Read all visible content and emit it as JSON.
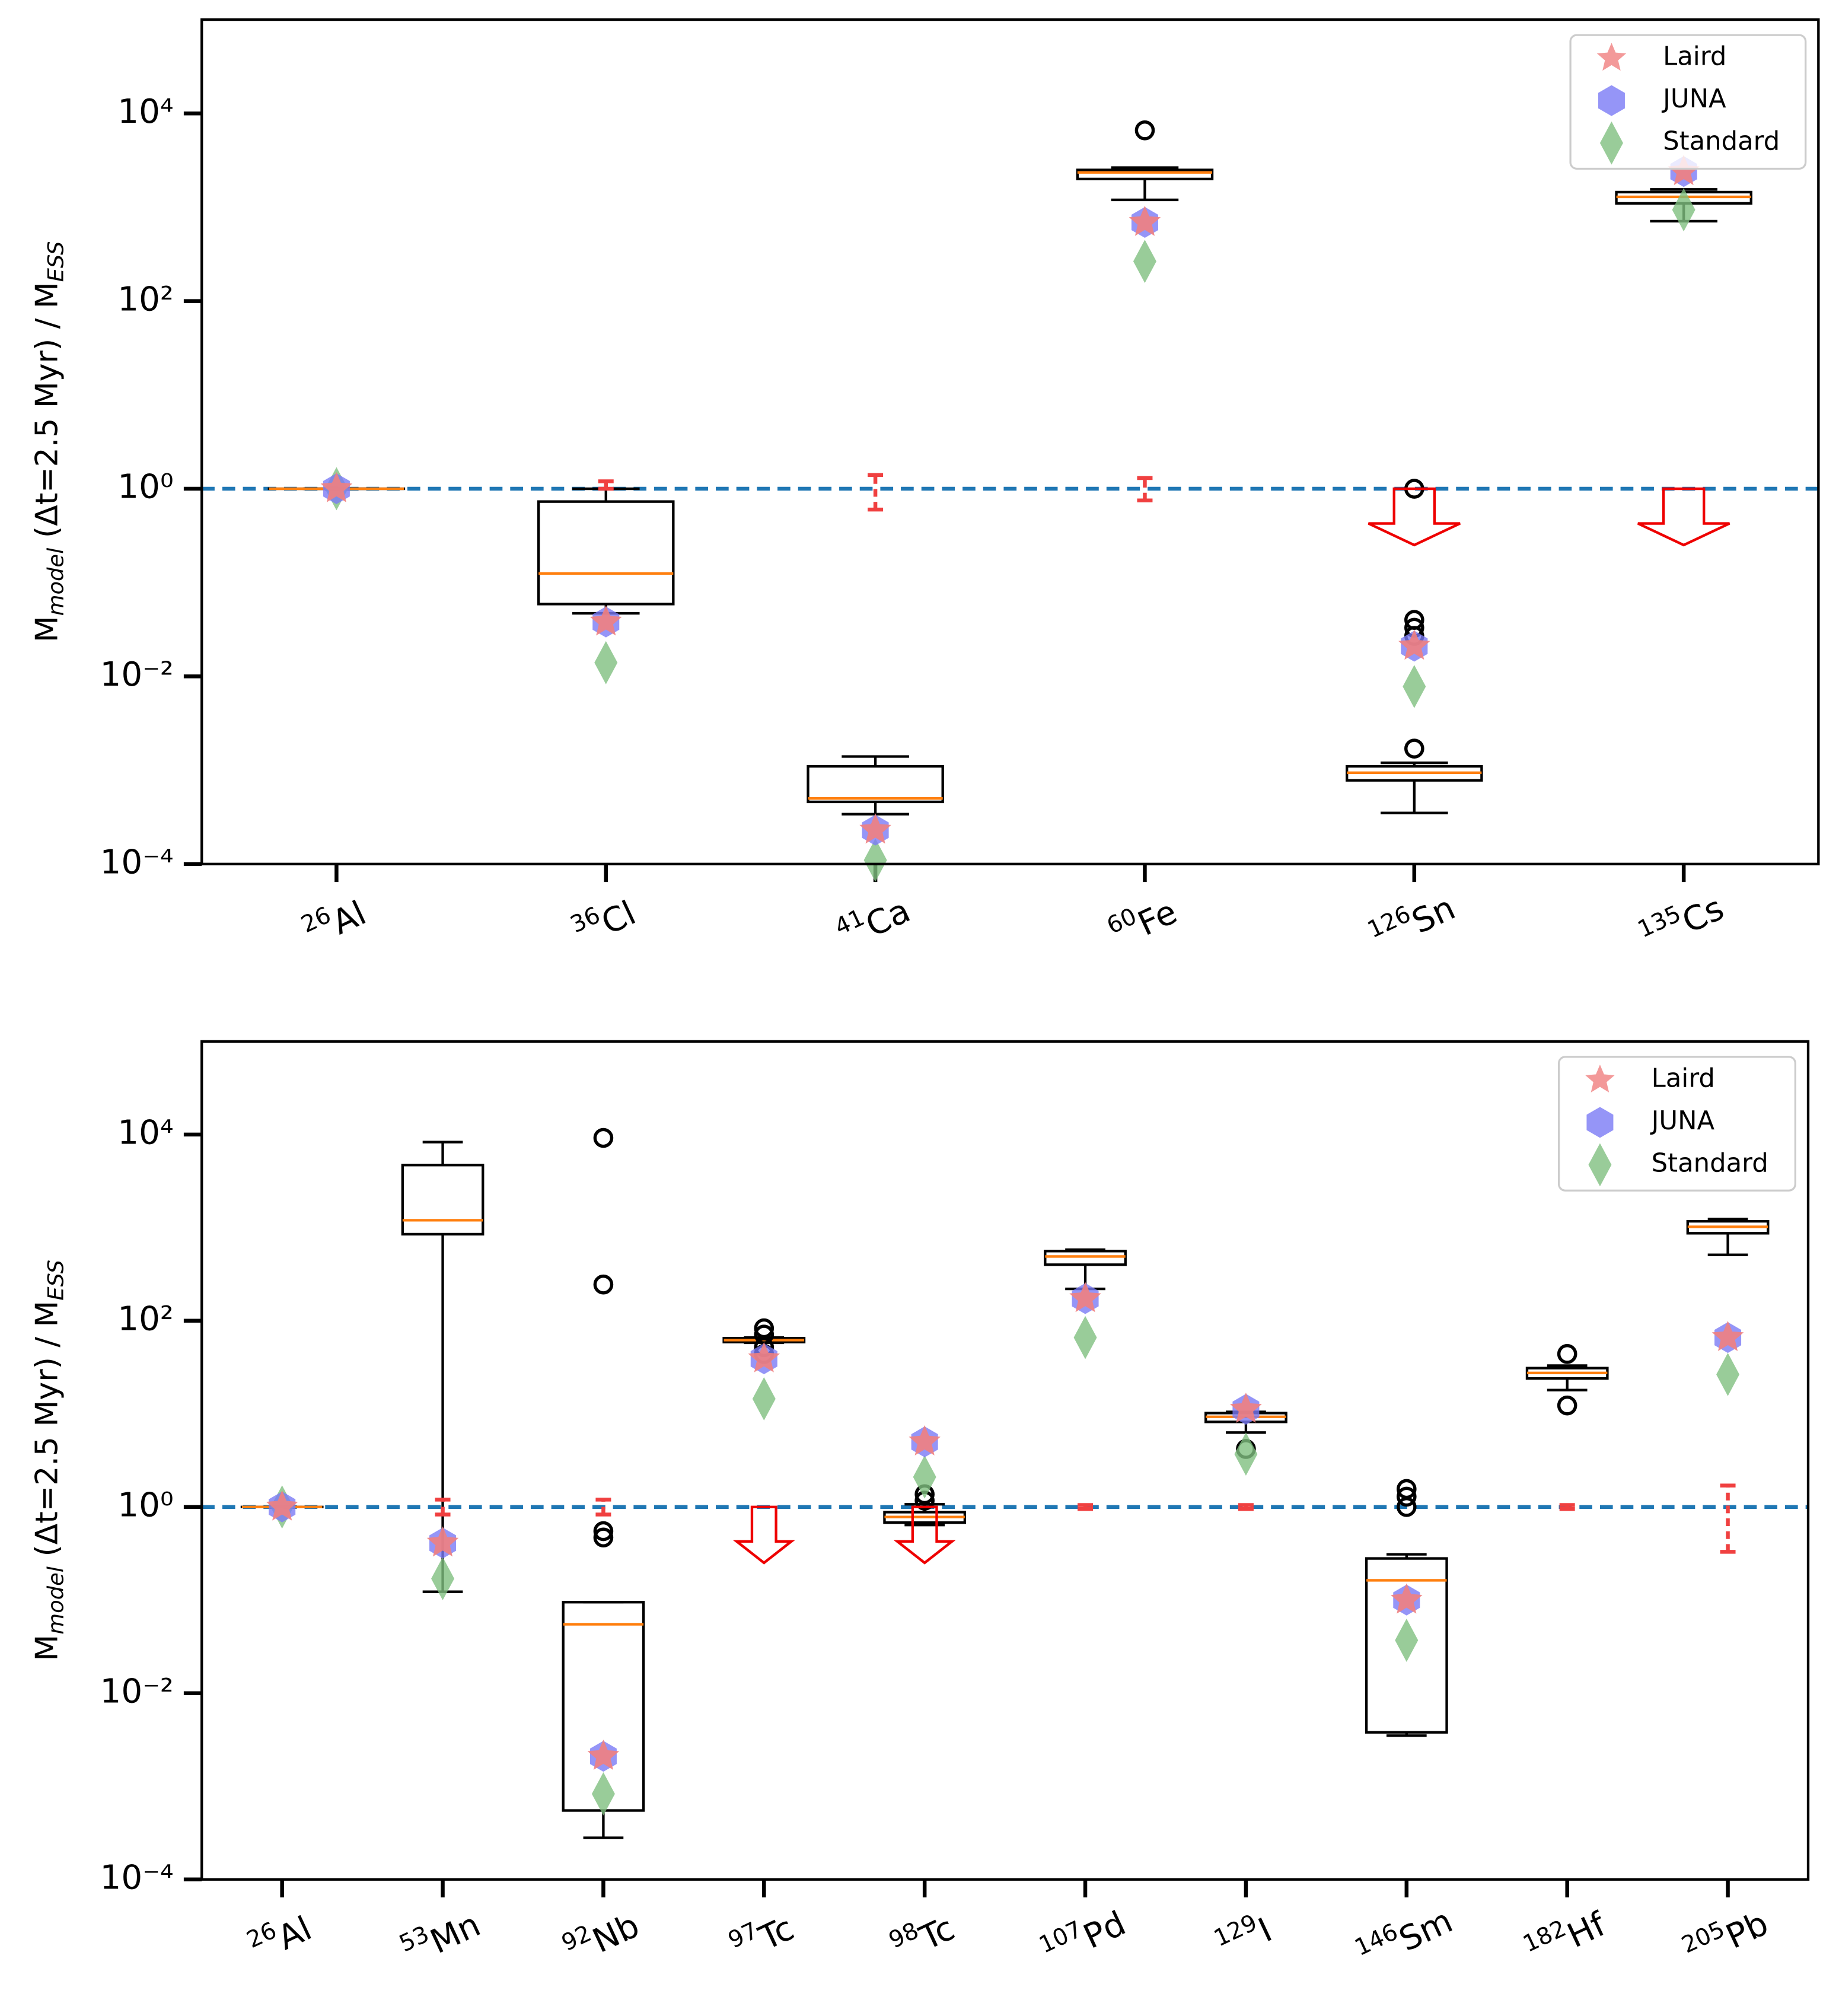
{
  "chart_data": [
    {
      "type": "box",
      "ylabel": {
        "base": "M",
        "sub": "model",
        "mid": " (Δt=2.5 Myr) / M",
        "sub2": "ESS"
      },
      "categories": [
        {
          "mass": "26",
          "element": "Al"
        },
        {
          "mass": "36",
          "element": "Cl"
        },
        {
          "mass": "41",
          "element": "Ca"
        },
        {
          "mass": "60",
          "element": "Fe"
        },
        {
          "mass": "126",
          "element": "Sn"
        },
        {
          "mass": "135",
          "element": "Cs"
        }
      ],
      "log_scale": true,
      "ylim": [
        0.0001,
        100000
      ],
      "yticks": [
        {
          "value": 0.0001,
          "label": "10⁻⁴"
        },
        {
          "value": 0.01,
          "label": "10⁻²"
        },
        {
          "value": 1,
          "label": "10⁰"
        },
        {
          "value": 100,
          "label": "10²"
        },
        {
          "value": 10000,
          "label": "10⁴"
        }
      ],
      "hline": 1,
      "hline_color": "#1f77b4",
      "median_color": "#ff7f0e",
      "boxes": [
        {
          "whislo": 1,
          "q1": 1,
          "med": 1,
          "q3": 1,
          "whishi": 1
        },
        {
          "whislo": 0.047,
          "q1": 0.059,
          "med": 0.125,
          "q3": 0.73,
          "whishi": 1.0
        },
        {
          "whislo": 0.00034,
          "q1": 0.00046,
          "med": 0.0005,
          "q3": 0.0011,
          "whishi": 0.0014
        },
        {
          "whislo": 1200,
          "q1": 2000,
          "med": 2350,
          "q3": 2500,
          "whishi": 2650
        },
        {
          "whislo": 0.00035,
          "q1": 0.00078,
          "med": 0.00094,
          "q3": 0.0011,
          "whishi": 0.0012
        },
        {
          "whislo": 710,
          "q1": 1100,
          "med": 1290,
          "q3": 1450,
          "whishi": 1550
        }
      ],
      "fliers": [
        [],
        [],
        [],
        [
          6600
        ],
        [
          1,
          0.04,
          0.033,
          0.027,
          0.0017
        ],
        []
      ],
      "series": [
        {
          "name": "Laird",
          "color": "#f08080",
          "marker": "star",
          "values": [
            1,
            0.038,
            0.00023,
            690,
            0.021,
            2400
          ]
        },
        {
          "name": "JUNA",
          "color": "#7b7bf5",
          "marker": "hexagon",
          "values": [
            1,
            0.038,
            0.00023,
            690,
            0.021,
            2400
          ]
        },
        {
          "name": "Standard",
          "color": "#7fbf7f",
          "marker": "diamond",
          "values": [
            1,
            0.014,
            0.00011,
            265,
            0.0078,
            940
          ]
        }
      ],
      "ess_errors": [
        null,
        {
          "low": 1,
          "high": 1.2
        },
        {
          "low": 0.6,
          "high": 1.4
        },
        {
          "low": 0.75,
          "high": 1.3
        },
        null,
        null
      ],
      "upper_limits": [
        null,
        null,
        null,
        null,
        1,
        1
      ],
      "legend": "upper right"
    },
    {
      "type": "box",
      "ylabel": {
        "base": "M",
        "sub": "model",
        "mid": " (Δt=2.5 Myr) / M",
        "sub2": "ESS"
      },
      "categories": [
        {
          "mass": "26",
          "element": "Al"
        },
        {
          "mass": "53",
          "element": "Mn"
        },
        {
          "mass": "92",
          "element": "Nb"
        },
        {
          "mass": "97",
          "element": "Tc"
        },
        {
          "mass": "98",
          "element": "Tc"
        },
        {
          "mass": "107",
          "element": "Pd"
        },
        {
          "mass": "129",
          "element": "I"
        },
        {
          "mass": "146",
          "element": "Sm"
        },
        {
          "mass": "182",
          "element": "Hf"
        },
        {
          "mass": "205",
          "element": "Pb"
        }
      ],
      "log_scale": true,
      "ylim": [
        0.0001,
        100000
      ],
      "yticks": [
        {
          "value": 0.0001,
          "label": "10⁻⁴"
        },
        {
          "value": 0.01,
          "label": "10⁻²"
        },
        {
          "value": 1,
          "label": "10⁰"
        },
        {
          "value": 100,
          "label": "10²"
        },
        {
          "value": 10000,
          "label": "10⁴"
        }
      ],
      "hline": 1,
      "hline_color": "#1f77b4",
      "median_color": "#ff7f0e",
      "boxes": [
        {
          "whislo": 1,
          "q1": 1,
          "med": 1,
          "q3": 1,
          "whishi": 1
        },
        {
          "whislo": 0.123,
          "q1": 850,
          "med": 1200,
          "q3": 4700,
          "whishi": 8300
        },
        {
          "whislo": 0.00028,
          "q1": 0.00055,
          "med": 0.055,
          "q3": 0.095,
          "whishi": 0.095
        },
        {
          "whislo": 58,
          "q1": 59,
          "med": 62,
          "q3": 65,
          "whishi": 66
        },
        {
          "whislo": 0.64,
          "q1": 0.68,
          "med": 0.78,
          "q3": 0.88,
          "whishi": 1.07
        },
        {
          "whislo": 220,
          "q1": 400,
          "med": 490,
          "q3": 560,
          "whishi": 580
        },
        {
          "whislo": 6.3,
          "q1": 8.2,
          "med": 9.3,
          "q3": 10.2,
          "whishi": 10.5
        },
        {
          "whislo": 0.0035,
          "q1": 0.0038,
          "med": 0.163,
          "q3": 0.28,
          "whishi": 0.31
        },
        {
          "whislo": 18,
          "q1": 24,
          "med": 27.5,
          "q3": 31,
          "whishi": 33
        },
        {
          "whislo": 510,
          "q1": 870,
          "med": 1020,
          "q3": 1170,
          "whishi": 1240
        }
      ],
      "fliers": [
        [],
        [],
        [
          9200,
          245,
          0.55,
          0.47
        ],
        [
          83,
          71,
          52,
          44
        ],
        [
          1.37,
          1.17
        ],
        [],
        [
          4.2
        ],
        [
          1.56,
          1.29,
          1.0
        ],
        [
          44,
          12.3
        ],
        []
      ],
      "series": [
        {
          "name": "Laird",
          "color": "#f08080",
          "marker": "star",
          "values": [
            1,
            0.41,
            0.0021,
            39,
            5.0,
            173,
            11.2,
            0.1,
            null,
            66
          ]
        },
        {
          "name": "JUNA",
          "color": "#7b7bf5",
          "marker": "hexagon",
          "values": [
            1,
            0.41,
            0.0021,
            39,
            5.0,
            173,
            11.2,
            0.1,
            null,
            66
          ]
        },
        {
          "name": "Standard",
          "color": "#7fbf7f",
          "marker": "diamond",
          "values": [
            1,
            0.17,
            0.00083,
            14.5,
            2.1,
            66,
            3.7,
            0.037,
            null,
            26.5
          ]
        }
      ],
      "ess_errors": [
        null,
        {
          "low": 0.83,
          "high": 1.2
        },
        {
          "low": 0.83,
          "high": 1.2
        },
        null,
        null,
        {
          "low": 0.95,
          "high": 1.05
        },
        {
          "low": 0.95,
          "high": 1.05
        },
        null,
        {
          "low": 0.95,
          "high": 1.05
        },
        {
          "low": 0.33,
          "high": 1.7
        }
      ],
      "upper_limits": [
        null,
        null,
        null,
        1,
        1,
        null,
        null,
        null,
        null,
        null
      ],
      "legend": "upper right"
    }
  ]
}
